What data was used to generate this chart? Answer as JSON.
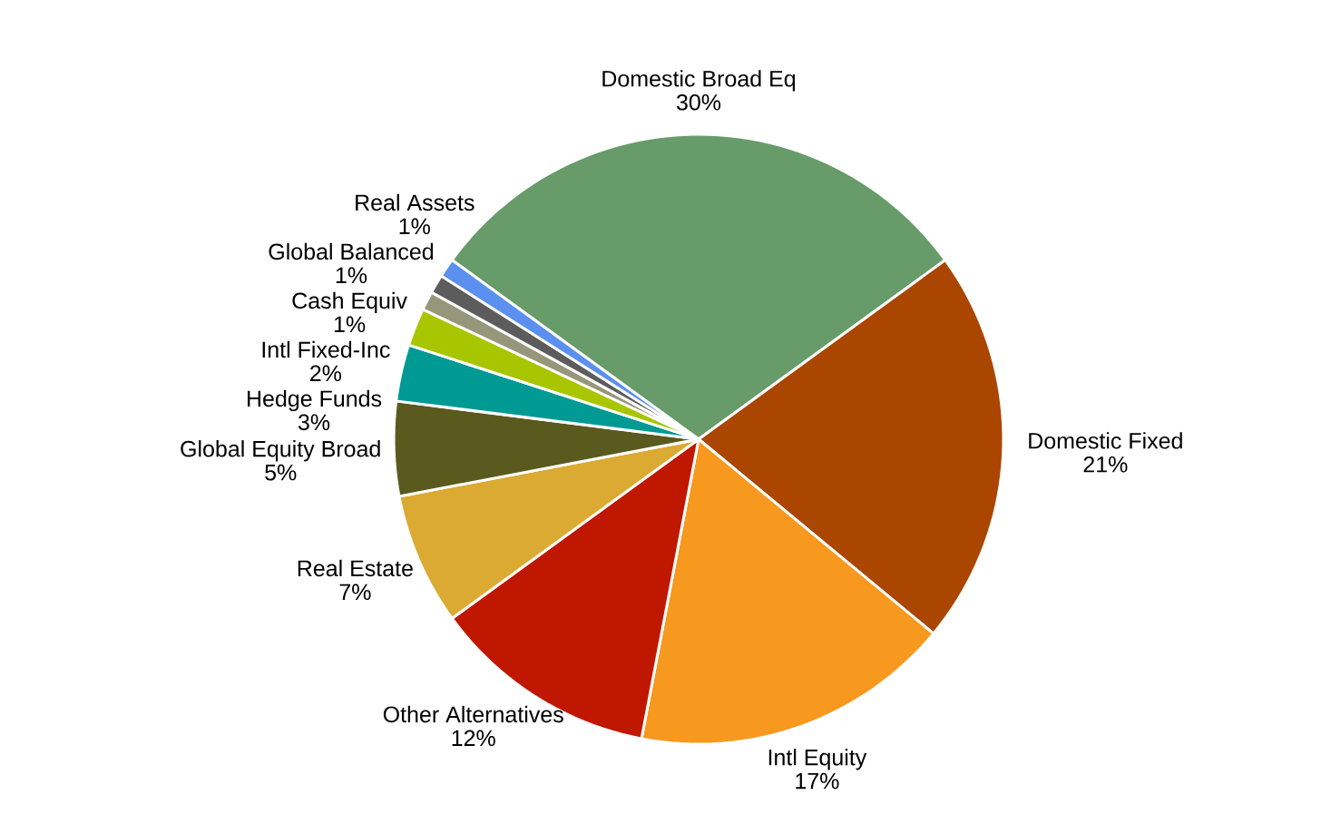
{
  "chart_data": {
    "type": "pie",
    "categories": [
      "Domestic Broad Eq",
      "Domestic Fixed",
      "Intl Equity",
      "Other Alternatives",
      "Real Estate",
      "Global Equity Broad",
      "Hedge Funds",
      "Intl Fixed-Inc",
      "Cash Equiv",
      "Global Balanced",
      "Real Assets"
    ],
    "values": [
      30,
      21,
      17,
      12,
      7,
      5,
      3,
      2,
      1,
      1,
      1
    ],
    "value_labels": [
      "30%",
      "21%",
      "17%",
      "12%",
      "7%",
      "5%",
      "3%",
      "2%",
      "1%",
      "1%",
      "1%"
    ],
    "colors": [
      "#679b69",
      "#aa4600",
      "#f7981f",
      "#c01700",
      "#dbaa32",
      "#5a5a1f",
      "#009a94",
      "#a7c600",
      "#96967a",
      "#5c5c5c",
      "#5b8ff0"
    ]
  }
}
